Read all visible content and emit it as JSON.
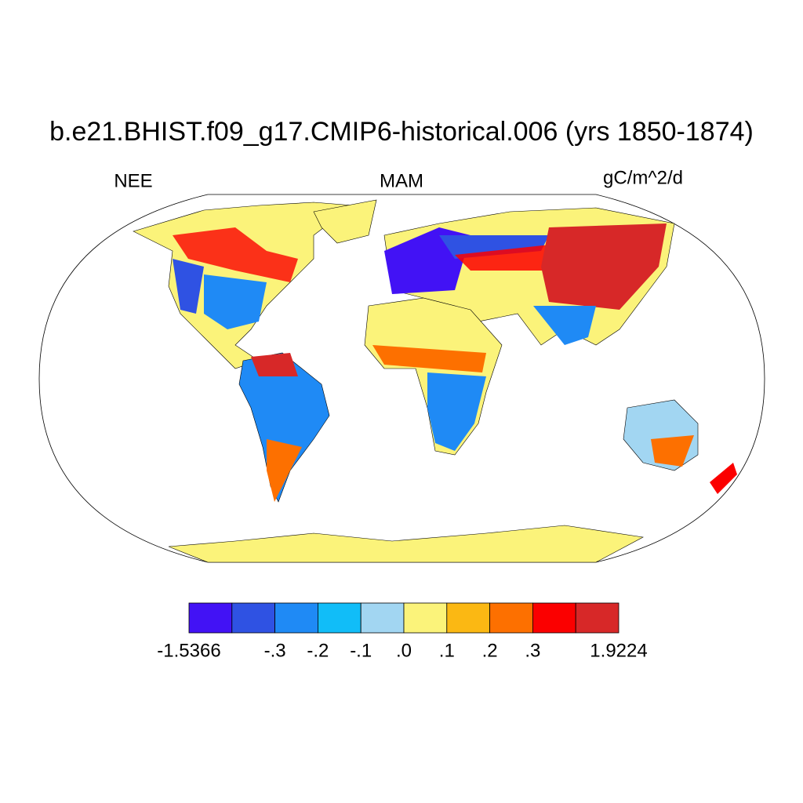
{
  "title": "b.e21.BHIST.f09_g17.CMIP6-historical.006 (yrs 1850-1874)",
  "left_label": "NEE",
  "center_label": "MAM",
  "right_label": "gC/m^2/d",
  "colorbar": {
    "colors": [
      "#4212f5",
      "#2f52e3",
      "#1f8af5",
      "#11bdf8",
      "#a2d6f2",
      "#fbf37a",
      "#fbb813",
      "#fd7000",
      "#fb0000",
      "#d72828"
    ],
    "boundaries": [
      {
        "value": -1.5366,
        "label": "-1.5366"
      },
      null,
      {
        "value": -0.3,
        "label": "-.3"
      },
      {
        "value": -0.2,
        "label": "-.2"
      },
      {
        "value": -0.1,
        "label": "-.1"
      },
      {
        "value": 0,
        "label": ".0"
      },
      {
        "value": 0.1,
        "label": ".1"
      },
      {
        "value": 0.2,
        "label": ".2"
      },
      {
        "value": 0.3,
        "label": ".3"
      },
      null,
      {
        "value": 1.9224,
        "label": "1.9224"
      }
    ]
  }
}
